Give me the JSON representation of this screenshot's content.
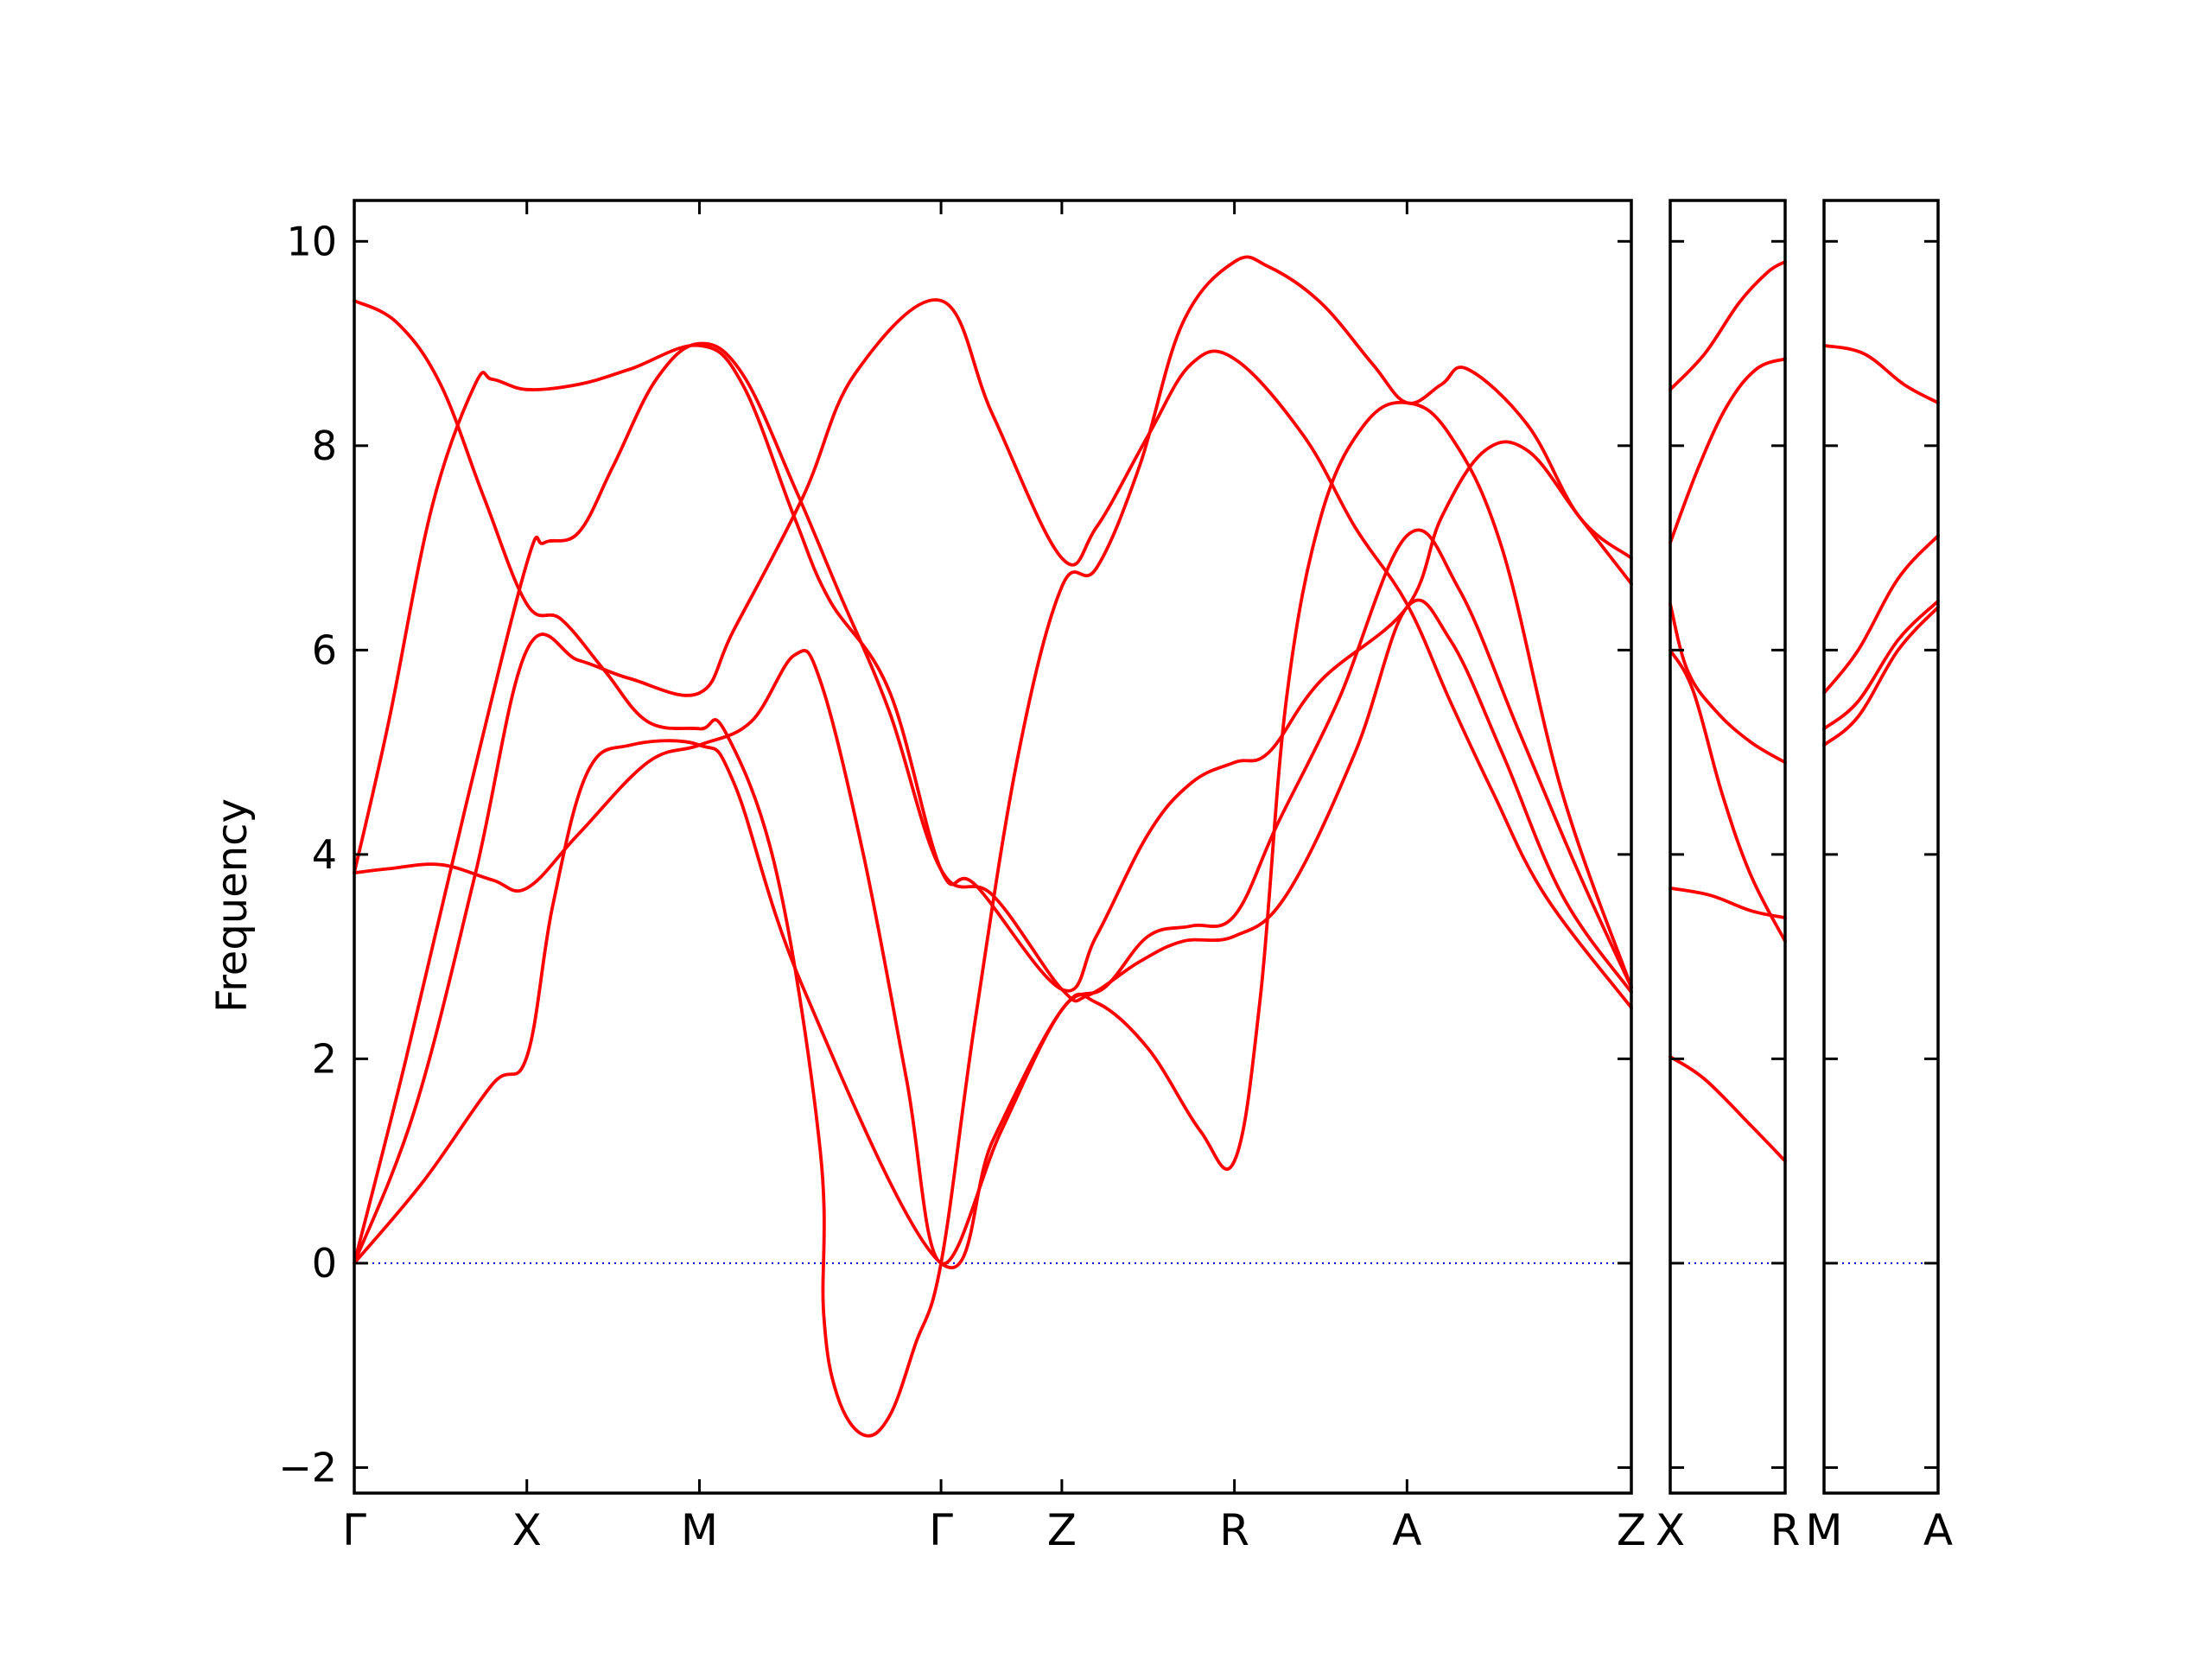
{
  "chart_data": {
    "type": "line",
    "title": "",
    "ylabel": "Frequency",
    "xlabel": "",
    "ylim": [
      -2.25,
      10.4
    ],
    "yticks": [
      -2,
      0,
      2,
      4,
      6,
      8,
      10
    ],
    "ytick_labels": [
      "−2",
      "0",
      "2",
      "4",
      "6",
      "8",
      "10"
    ],
    "grid": false,
    "band_color": "#ff0000",
    "zero_line_color": "#0000cc",
    "panels": [
      {
        "id": "main",
        "x_range": [
          0,
          7.4
        ],
        "kpoints": [
          {
            "label": "Γ",
            "x": 0
          },
          {
            "label": "X",
            "x": 1
          },
          {
            "label": "M",
            "x": 2
          },
          {
            "label": "Γ",
            "x": 3.4
          },
          {
            "label": "Z",
            "x": 4.1
          },
          {
            "label": "R",
            "x": 5.1
          },
          {
            "label": "A",
            "x": 6.1
          },
          {
            "label": "Z",
            "x": 7.4
          }
        ],
        "bands": [
          [
            [
              0,
              0
            ],
            [
              0.4,
              0.8
            ],
            [
              0.8,
              1.75
            ],
            [
              1,
              2.02
            ],
            [
              1.15,
              3.5
            ],
            [
              1.35,
              4.8
            ],
            [
              1.6,
              5.07
            ],
            [
              2,
              5.07
            ],
            [
              2.2,
              4.7
            ],
            [
              2.6,
              2.7
            ],
            [
              3.4,
              0
            ],
            [
              3.7,
              1.2
            ],
            [
              4.1,
              2.48
            ],
            [
              4.3,
              2.55
            ],
            [
              4.6,
              2.1
            ],
            [
              4.9,
              1.3
            ],
            [
              5.1,
              1.0
            ],
            [
              5.25,
              2.6
            ],
            [
              5.4,
              5.5
            ],
            [
              5.6,
              7.3
            ],
            [
              5.85,
              8.2
            ],
            [
              6.1,
              8.42
            ],
            [
              6.35,
              8.1
            ],
            [
              6.65,
              7
            ],
            [
              7,
              4.6
            ],
            [
              7.4,
              2.7
            ]
          ],
          [
            [
              0,
              0
            ],
            [
              0.35,
              1.5
            ],
            [
              0.7,
              3.8
            ],
            [
              1,
              6.0
            ],
            [
              1.3,
              5.9
            ],
            [
              1.6,
              5.72
            ],
            [
              2,
              5.58
            ],
            [
              2.2,
              6.2
            ],
            [
              2.6,
              7.5
            ],
            [
              2.9,
              8.7
            ],
            [
              3.4,
              9.42
            ],
            [
              3.7,
              8.3
            ],
            [
              4.1,
              6.9
            ],
            [
              4.3,
              7.2
            ],
            [
              4.6,
              8.1
            ],
            [
              4.85,
              8.8
            ],
            [
              5.1,
              8.85
            ],
            [
              5.5,
              8.1
            ],
            [
              5.8,
              7.2
            ],
            [
              6.1,
              6.45
            ],
            [
              6.35,
              5.5
            ],
            [
              6.6,
              4.6
            ],
            [
              6.9,
              3.6
            ],
            [
              7.4,
              2.5
            ]
          ],
          [
            [
              0,
              0
            ],
            [
              0.3,
              2
            ],
            [
              0.65,
              4.5
            ],
            [
              1,
              6.85
            ],
            [
              1.1,
              7.05
            ],
            [
              1.3,
              7.15
            ],
            [
              1.5,
              7.8
            ],
            [
              1.75,
              8.65
            ],
            [
              2,
              9.0
            ],
            [
              2.25,
              8.7
            ],
            [
              2.55,
              7.6
            ],
            [
              2.8,
              6.6
            ],
            [
              3.1,
              5.4
            ],
            [
              3.4,
              3.85
            ],
            [
              3.7,
              3.6
            ],
            [
              4.1,
              2.68
            ],
            [
              4.25,
              2.62
            ],
            [
              4.55,
              2.95
            ],
            [
              4.8,
              3.15
            ],
            [
              5.1,
              3.2
            ],
            [
              5.4,
              3.6
            ],
            [
              5.8,
              5
            ],
            [
              6.1,
              6.42
            ],
            [
              6.35,
              6.1
            ],
            [
              6.65,
              5
            ],
            [
              7,
              3.6
            ],
            [
              7.4,
              2.65
            ]
          ],
          [
            [
              0,
              3.82
            ],
            [
              0.2,
              3.86
            ],
            [
              0.5,
              3.9
            ],
            [
              0.8,
              3.75
            ],
            [
              1,
              3.67
            ],
            [
              1.3,
              4.2
            ],
            [
              1.7,
              4.9
            ],
            [
              2,
              5.07
            ],
            [
              2.3,
              5.3
            ],
            [
              2.55,
              5.95
            ],
            [
              2.7,
              5.7
            ],
            [
              2.95,
              4
            ],
            [
              3.2,
              1.8
            ],
            [
              3.4,
              0
            ],
            [
              3.75,
              1.3
            ],
            [
              4.1,
              2.48
            ],
            [
              4.35,
              2.7
            ],
            [
              4.6,
              3.2
            ],
            [
              4.85,
              3.3
            ],
            [
              5.1,
              3.4
            ],
            [
              5.35,
              4.3
            ],
            [
              5.7,
              5.5
            ],
            [
              6.1,
              7.12
            ],
            [
              6.4,
              6.6
            ],
            [
              6.75,
              5.2
            ],
            [
              7.1,
              3.8
            ],
            [
              7.4,
              2.7
            ]
          ],
          [
            [
              0,
              3.82
            ],
            [
              0.2,
              5.3
            ],
            [
              0.45,
              7.4
            ],
            [
              0.7,
              8.6
            ],
            [
              0.8,
              8.65
            ],
            [
              1,
              8.55
            ],
            [
              1.3,
              8.6
            ],
            [
              1.6,
              8.75
            ],
            [
              2,
              8.98
            ],
            [
              2.25,
              8.6
            ],
            [
              2.55,
              7.3
            ],
            [
              2.75,
              6.5
            ],
            [
              3.1,
              5.6
            ],
            [
              3.4,
              3.85
            ],
            [
              3.6,
              3.7
            ],
            [
              4.1,
              2.68
            ],
            [
              4.3,
              3.2
            ],
            [
              4.6,
              4.2
            ],
            [
              4.85,
              4.7
            ],
            [
              5.1,
              4.9
            ],
            [
              5.3,
              5.0
            ],
            [
              5.6,
              5.7
            ],
            [
              6.1,
              6.42
            ],
            [
              6.3,
              7.3
            ],
            [
              6.55,
              7.95
            ],
            [
              6.8,
              7.95
            ],
            [
              7.1,
              7.3
            ],
            [
              7.4,
              6.65
            ]
          ],
          [
            [
              0,
              9.42
            ],
            [
              0.25,
              9.2
            ],
            [
              0.5,
              8.6
            ],
            [
              0.75,
              7.5
            ],
            [
              1,
              6.45
            ],
            [
              1.2,
              6.3
            ],
            [
              1.45,
              5.8
            ],
            [
              1.7,
              5.3
            ],
            [
              2,
              5.23
            ],
            [
              2.15,
              5.2
            ],
            [
              2.45,
              3.8
            ],
            [
              2.7,
              1.1
            ],
            [
              2.72,
              -0.5
            ],
            [
              2.8,
              -1.3
            ],
            [
              2.95,
              -1.68
            ],
            [
              3.1,
              -1.5
            ],
            [
              3.25,
              -0.8
            ],
            [
              3.4,
              0
            ],
            [
              3.6,
              2.4
            ],
            [
              3.85,
              5.0
            ],
            [
              4.1,
              6.62
            ],
            [
              4.3,
              6.8
            ],
            [
              4.55,
              7.8
            ],
            [
              4.8,
              9.2
            ],
            [
              5.1,
              9.8
            ],
            [
              5.3,
              9.75
            ],
            [
              5.6,
              9.4
            ],
            [
              5.9,
              8.8
            ],
            [
              6.1,
              8.42
            ],
            [
              6.3,
              8.6
            ],
            [
              6.45,
              8.75
            ],
            [
              6.8,
              8.2
            ],
            [
              7.1,
              7.3
            ],
            [
              7.4,
              6.9
            ]
          ]
        ]
      },
      {
        "id": "X-R",
        "x_range": [
          0,
          1
        ],
        "kpoints": [
          {
            "label": "X",
            "x": 0
          },
          {
            "label": "R",
            "x": 1
          }
        ],
        "bands": [
          [
            [
              0,
              2.02
            ],
            [
              0.3,
              1.8
            ],
            [
              0.7,
              1.35
            ],
            [
              1,
              1.0
            ]
          ],
          [
            [
              0,
              3.67
            ],
            [
              0.35,
              3.6
            ],
            [
              0.7,
              3.45
            ],
            [
              1,
              3.38
            ]
          ],
          [
            [
              0,
              6.0
            ],
            [
              0.2,
              5.6
            ],
            [
              0.45,
              4.6
            ],
            [
              0.7,
              3.8
            ],
            [
              1,
              3.15
            ]
          ],
          [
            [
              0,
              6.45
            ],
            [
              0.15,
              5.8
            ],
            [
              0.4,
              5.4
            ],
            [
              0.7,
              5.1
            ],
            [
              1,
              4.9
            ]
          ],
          [
            [
              0,
              7.05
            ],
            [
              0.25,
              7.8
            ],
            [
              0.5,
              8.4
            ],
            [
              0.75,
              8.75
            ],
            [
              1,
              8.85
            ]
          ],
          [
            [
              0,
              8.55
            ],
            [
              0.3,
              8.9
            ],
            [
              0.6,
              9.4
            ],
            [
              0.85,
              9.7
            ],
            [
              1,
              9.8
            ]
          ]
        ]
      },
      {
        "id": "M-A",
        "x_range": [
          0,
          1
        ],
        "kpoints": [
          {
            "label": "M",
            "x": 0
          },
          {
            "label": "A",
            "x": 1
          }
        ],
        "bands": [
          [
            [
              0,
              5.07
            ],
            [
              0.3,
              5.35
            ],
            [
              0.65,
              6.0
            ],
            [
              1,
              6.42
            ]
          ],
          [
            [
              0,
              5.23
            ],
            [
              0.3,
              5.5
            ],
            [
              0.65,
              6.1
            ],
            [
              1,
              6.48
            ]
          ],
          [
            [
              0,
              5.58
            ],
            [
              0.3,
              6.0
            ],
            [
              0.65,
              6.7
            ],
            [
              1,
              7.12
            ]
          ],
          [
            [
              0,
              8.98
            ],
            [
              0.35,
              8.9
            ],
            [
              0.7,
              8.6
            ],
            [
              1,
              8.42
            ]
          ]
        ]
      }
    ]
  }
}
